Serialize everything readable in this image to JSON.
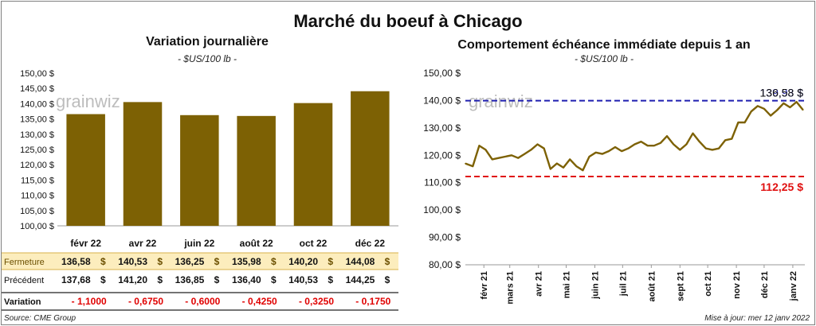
{
  "title": "Marché du boeuf à Chicago",
  "watermark": "grainwiz",
  "source": "Source: CME Group",
  "updated": "Mise à jour: mer 12 janv 2022",
  "colors": {
    "bar": "#7d6104",
    "fermeture_bg": "#fcedbd",
    "negative": "#e00000",
    "high_line": "#1f1fb0",
    "low_line": "#e01010"
  },
  "left_chart": {
    "subtitle": "Variation journalière",
    "unit": "- $US/100 lb -",
    "y_ticks": [
      "150,00 $",
      "145,00 $",
      "140,00 $",
      "135,00 $",
      "130,00 $",
      "125,00 $",
      "120,00 $",
      "115,00 $",
      "110,00 $",
      "105,00 $",
      "100,00 $"
    ]
  },
  "table": {
    "rows": [
      {
        "label": "Fermeture",
        "values": [
          "136,58",
          "140,53",
          "136,25",
          "135,98",
          "140,20",
          "144,08"
        ],
        "suffix": "$"
      },
      {
        "label": "Précédent",
        "values": [
          "137,68",
          "141,20",
          "136,85",
          "136,40",
          "140,53",
          "144,25"
        ],
        "suffix": "$"
      },
      {
        "label": "Variation",
        "values": [
          "- 1,1000",
          "- 0,6750",
          "- 0,6000",
          "- 0,4250",
          "- 0,3250",
          "- 0,1750"
        ],
        "suffix": ""
      }
    ]
  },
  "right_chart": {
    "subtitle": "Comportement  échéance immédiate depuis 1 an",
    "unit": "- $US/100 lb -",
    "y_ticks": [
      "150,00 $",
      "140,00 $",
      "130,00 $",
      "120,00 $",
      "110,00 $",
      "100,00 $",
      "90,00 $",
      "80,00 $"
    ],
    "x_ticks": [
      "févr 21",
      "mars 21",
      "avr 21",
      "mai 21",
      "juin 21",
      "juil 21",
      "août 21",
      "sept 21",
      "oct 21",
      "nov 21",
      "déc 21",
      "janv 22"
    ],
    "high_label": "139,93 $",
    "last_label": "136,58 $",
    "low_label": "112,25 $"
  },
  "chart_data": [
    {
      "type": "bar",
      "categories": [
        "févr 22",
        "avr 22",
        "juin 22",
        "août 22",
        "oct 22",
        "déc 22"
      ],
      "values": [
        136.58,
        140.53,
        136.25,
        135.98,
        140.2,
        144.08
      ],
      "title": "Variation journalière",
      "ylabel": "$US/100 lb",
      "ylim": [
        100,
        150
      ]
    },
    {
      "type": "line",
      "title": "Comportement échéance immédiate depuis 1 an",
      "ylabel": "$US/100 lb",
      "ylim": [
        80,
        150
      ],
      "x": [
        "2021-01-12",
        "2021-01-20",
        "2021-01-27",
        "2021-02-03",
        "2021-02-10",
        "2021-02-17",
        "2021-02-24",
        "2021-03-03",
        "2021-03-10",
        "2021-03-17",
        "2021-03-24",
        "2021-03-31",
        "2021-04-07",
        "2021-04-14",
        "2021-04-21",
        "2021-04-28",
        "2021-05-05",
        "2021-05-12",
        "2021-05-19",
        "2021-05-26",
        "2021-06-02",
        "2021-06-09",
        "2021-06-16",
        "2021-06-23",
        "2021-06-30",
        "2021-07-07",
        "2021-07-14",
        "2021-07-21",
        "2021-07-28",
        "2021-08-04",
        "2021-08-11",
        "2021-08-18",
        "2021-08-25",
        "2021-09-01",
        "2021-09-08",
        "2021-09-15",
        "2021-09-22",
        "2021-09-29",
        "2021-10-06",
        "2021-10-13",
        "2021-10-20",
        "2021-10-27",
        "2021-11-03",
        "2021-11-10",
        "2021-11-17",
        "2021-11-24",
        "2021-12-01",
        "2021-12-08",
        "2021-12-15",
        "2021-12-22",
        "2021-12-29",
        "2022-01-05",
        "2022-01-12"
      ],
      "y": [
        117,
        116,
        123.5,
        122,
        118.5,
        119,
        119.5,
        120,
        119,
        120.5,
        122,
        124,
        122.5,
        115,
        117,
        115.5,
        118.5,
        116,
        114.5,
        119.5,
        121,
        120.5,
        121.5,
        123,
        121.5,
        122.5,
        124,
        125,
        123.5,
        123.5,
        124.5,
        127,
        124,
        122,
        124,
        128,
        125,
        122.5,
        122,
        122.5,
        125.5,
        126,
        132,
        132,
        136,
        138,
        137,
        134.5,
        136.5,
        139,
        137.5,
        139.5,
        136.58
      ],
      "hlines": [
        {
          "label": "139,93 $",
          "value": 139.93
        },
        {
          "label": "112,25 $",
          "value": 112.25
        }
      ],
      "last_value_label": "136,58 $"
    }
  ]
}
